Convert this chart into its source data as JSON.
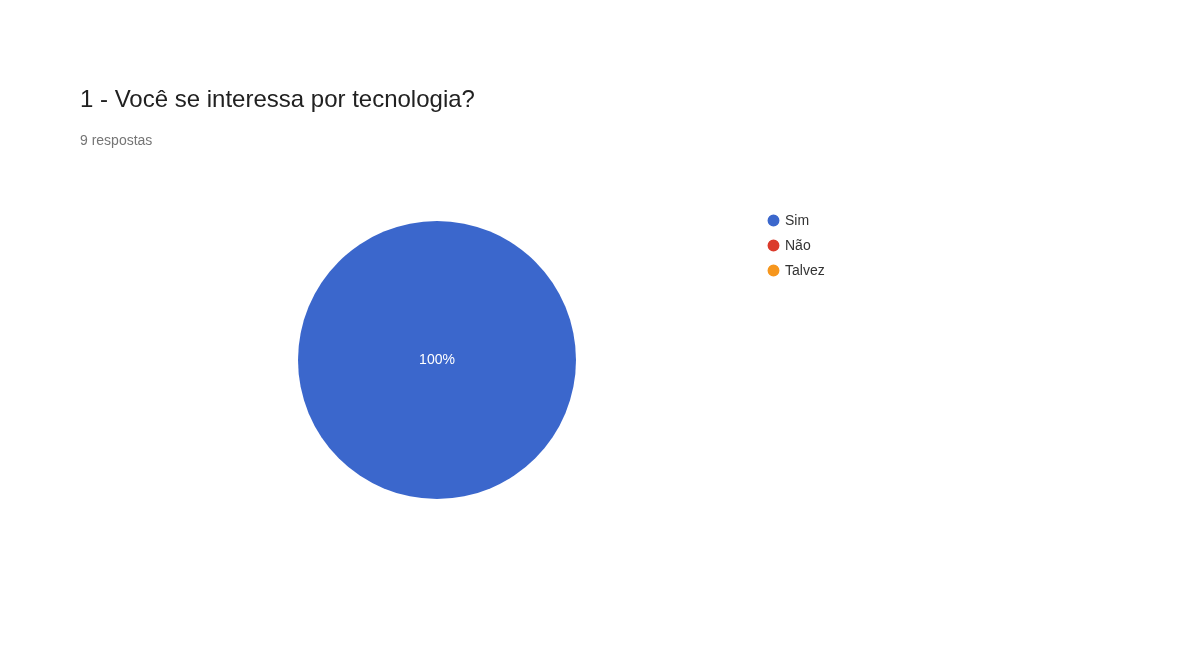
{
  "chart_data": {
    "type": "pie",
    "title": "1 - Você se interessa por tecnologia?",
    "subtitle": "9 respostas",
    "categories": [
      "Sim",
      "Não",
      "Talvez"
    ],
    "values": [
      100,
      0,
      0
    ],
    "colors": [
      "#3b67cc",
      "#db3a2b",
      "#f6961d"
    ],
    "value_labels": [
      "100%",
      null,
      null
    ],
    "legend": "right"
  }
}
